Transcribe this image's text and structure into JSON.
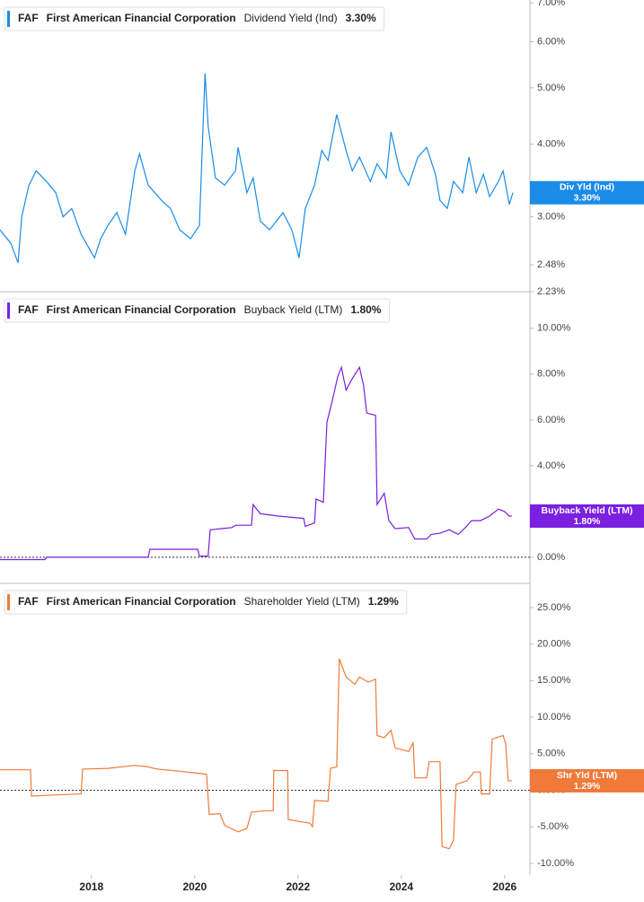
{
  "chart_data": [
    {
      "type": "line",
      "ticker": "FAF",
      "company": "First American Financial Corporation",
      "metric": "Dividend Yield (Ind)",
      "log_scale": true,
      "zero_line": false,
      "xlim": [
        2016.23,
        2026.49
      ],
      "ylim": [
        2.23,
        7.08
      ],
      "yticks": [
        {
          "value": 7,
          "label": "7.00%"
        },
        {
          "value": 6,
          "label": "6.00%"
        },
        {
          "value": 5,
          "label": "5.00%"
        },
        {
          "value": 4,
          "label": "4.00%"
        },
        {
          "value": 3,
          "label": "3.00%"
        },
        {
          "value": 2.48,
          "label": "2.48%"
        },
        {
          "value": 2.23,
          "label": "2.23%"
        }
      ],
      "last_value": {
        "value": 3.3,
        "label": "3.30%"
      },
      "x": [
        2016.23,
        2016.44,
        2016.58,
        2016.65,
        2016.79,
        2016.93,
        2017.13,
        2017.31,
        2017.45,
        2017.62,
        2017.8,
        2018.06,
        2018.18,
        2018.32,
        2018.49,
        2018.66,
        2018.84,
        2018.93,
        2019.1,
        2019.36,
        2019.53,
        2019.71,
        2019.92,
        2020.09,
        2020.2,
        2020.26,
        2020.4,
        2020.58,
        2020.79,
        2020.84,
        2021.01,
        2021.13,
        2021.27,
        2021.45,
        2021.71,
        2021.88,
        2022.02,
        2022.14,
        2022.32,
        2022.46,
        2022.58,
        2022.75,
        2022.93,
        2023.05,
        2023.19,
        2023.4,
        2023.53,
        2023.71,
        2023.8,
        2023.97,
        2024.14,
        2024.32,
        2024.49,
        2024.66,
        2024.75,
        2024.89,
        2025.01,
        2025.19,
        2025.31,
        2025.45,
        2025.59,
        2025.71,
        2025.88,
        2025.97,
        2026.09,
        2026.16
      ],
      "series": [
        {
          "name": "Div Yld (Ind)",
          "color": "#1a8ce8",
          "values": [
            2.85,
            2.7,
            2.5,
            3.0,
            3.4,
            3.6,
            3.45,
            3.3,
            3.0,
            3.1,
            2.8,
            2.55,
            2.75,
            2.9,
            3.05,
            2.8,
            3.6,
            3.85,
            3.4,
            3.2,
            3.1,
            2.85,
            2.75,
            2.9,
            5.3,
            4.3,
            3.5,
            3.4,
            3.6,
            3.95,
            3.3,
            3.5,
            2.95,
            2.85,
            3.05,
            2.85,
            2.55,
            3.1,
            3.4,
            3.9,
            3.75,
            4.5,
            3.9,
            3.6,
            3.8,
            3.45,
            3.7,
            3.5,
            4.2,
            3.6,
            3.4,
            3.8,
            3.95,
            3.55,
            3.2,
            3.1,
            3.45,
            3.3,
            3.8,
            3.3,
            3.55,
            3.25,
            3.45,
            3.6,
            3.15,
            3.3
          ]
        }
      ]
    },
    {
      "type": "line",
      "ticker": "FAF",
      "company": "First American Financial Corporation",
      "metric": "Buyback Yield (LTM)",
      "log_scale": false,
      "zero_line": true,
      "xlim": [
        2016.23,
        2026.49
      ],
      "ylim": [
        -1.14,
        11.6
      ],
      "yticks": [
        {
          "value": 10,
          "label": "10.00%"
        },
        {
          "value": 8,
          "label": "8.00%"
        },
        {
          "value": 6,
          "label": "6.00%"
        },
        {
          "value": 4,
          "label": "4.00%"
        },
        {
          "value": 0,
          "label": "0.00%"
        }
      ],
      "last_value": {
        "value": 1.8,
        "label": "1.80%"
      },
      "x": [
        2016.23,
        2017.1,
        2017.13,
        2019.1,
        2019.13,
        2020.06,
        2020.09,
        2020.26,
        2020.3,
        2020.72,
        2020.79,
        2021.1,
        2021.13,
        2021.27,
        2021.62,
        2022.11,
        2022.14,
        2022.32,
        2022.35,
        2022.49,
        2022.56,
        2022.66,
        2022.77,
        2022.84,
        2022.93,
        2023.05,
        2023.19,
        2023.27,
        2023.33,
        2023.5,
        2023.53,
        2023.67,
        2023.76,
        2023.88,
        2024.14,
        2024.26,
        2024.49,
        2024.58,
        2024.75,
        2024.93,
        2025.1,
        2025.24,
        2025.36,
        2025.53,
        2025.71,
        2025.88,
        2026.0,
        2026.09,
        2026.14
      ],
      "series": [
        {
          "name": "Buyback Yield (LTM)",
          "color": "#7b1fe0",
          "values": [
            -0.1,
            -0.1,
            0,
            0,
            0.35,
            0.35,
            0.05,
            0.05,
            1.2,
            1.3,
            1.4,
            1.4,
            2.3,
            1.9,
            1.8,
            1.7,
            1.35,
            1.5,
            2.55,
            2.4,
            5.9,
            6.8,
            7.9,
            8.3,
            7.3,
            7.8,
            8.3,
            7.5,
            6.3,
            6.2,
            2.3,
            2.8,
            1.6,
            1.25,
            1.3,
            0.8,
            0.8,
            1.0,
            1.05,
            1.2,
            1.0,
            1.3,
            1.6,
            1.6,
            1.8,
            2.1,
            2.0,
            1.8,
            1.8
          ]
        }
      ]
    },
    {
      "type": "line",
      "ticker": "FAF",
      "company": "First American Financial Corporation",
      "metric": "Shareholder Yield (LTM)",
      "log_scale": false,
      "zero_line": true,
      "xlim": [
        2016.23,
        2026.49
      ],
      "ylim": [
        -11.6,
        28.3
      ],
      "yticks": [
        {
          "value": 25,
          "label": "25.00%"
        },
        {
          "value": 20,
          "label": "20.00%"
        },
        {
          "value": 15,
          "label": "15.00%"
        },
        {
          "value": 10,
          "label": "10.00%"
        },
        {
          "value": 5,
          "label": "5.00%"
        },
        {
          "value": 0,
          "label": "0.00%"
        },
        {
          "value": -5,
          "label": "-5.00%"
        },
        {
          "value": -10,
          "label": "-10.00%"
        }
      ],
      "xticks": [
        2018,
        2020,
        2022,
        2024,
        2026
      ],
      "last_value": {
        "value": 1.29,
        "label": "1.29%"
      },
      "x": [
        2016.23,
        2016.82,
        2016.84,
        2017.13,
        2017.8,
        2017.83,
        2018.32,
        2018.84,
        2019.1,
        2019.27,
        2019.71,
        2020.23,
        2020.28,
        2020.49,
        2020.58,
        2020.84,
        2021.01,
        2021.1,
        2021.36,
        2021.52,
        2021.53,
        2021.8,
        2021.81,
        2022.23,
        2022.28,
        2022.32,
        2022.58,
        2022.63,
        2022.75,
        2022.8,
        2022.93,
        2023.1,
        2023.19,
        2023.36,
        2023.5,
        2023.53,
        2023.67,
        2023.8,
        2023.88,
        2024.14,
        2024.23,
        2024.26,
        2024.49,
        2024.54,
        2024.75,
        2024.79,
        2024.93,
        2025.01,
        2025.06,
        2025.27,
        2025.41,
        2025.53,
        2025.55,
        2025.71,
        2025.76,
        2025.97,
        2026.02,
        2026.07,
        2026.14
      ],
      "series": [
        {
          "name": "Shr Yld (LTM)",
          "color": "#f07a3a",
          "values": [
            2.8,
            2.8,
            -0.8,
            -0.7,
            -0.5,
            2.9,
            3.0,
            3.4,
            3.2,
            2.9,
            2.6,
            2.2,
            -3.3,
            -3.2,
            -4.8,
            -5.7,
            -5.2,
            -3.0,
            -2.8,
            -2.8,
            2.7,
            2.7,
            -4.0,
            -4.5,
            -5.0,
            -1.4,
            -1.5,
            3.0,
            3.2,
            18.0,
            15.5,
            14.5,
            15.5,
            14.8,
            15.2,
            7.5,
            7.2,
            8.2,
            5.8,
            5.3,
            6.5,
            1.7,
            1.7,
            3.9,
            3.9,
            -7.7,
            -8.0,
            -6.8,
            0.8,
            1.3,
            2.5,
            2.5,
            -0.5,
            -0.5,
            7.0,
            7.5,
            6.4,
            1.3,
            1.29
          ]
        }
      ]
    }
  ]
}
